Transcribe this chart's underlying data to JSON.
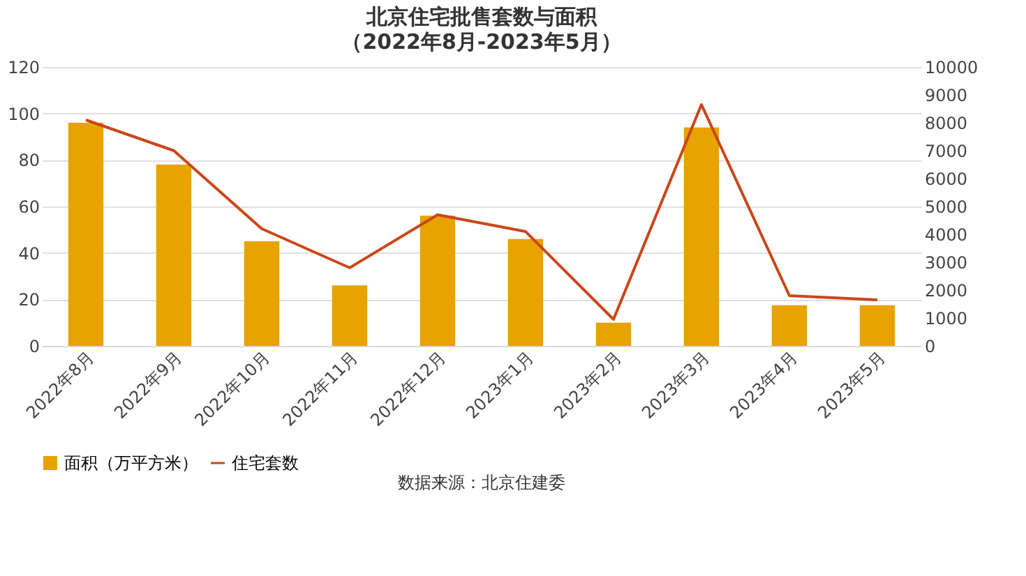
{
  "chart_data": {
    "type": "bar",
    "title": "北京住宅批售套数与面积",
    "subtitle": "（2022年8月-2023年5月）",
    "categories": [
      "2022年8月",
      "2022年9月",
      "2022年10月",
      "2022年11月",
      "2022年12月",
      "2023年1月",
      "2023年2月",
      "2023年3月",
      "2023年4月",
      "2023年5月"
    ],
    "series": [
      {
        "name": "面积（万平方米）",
        "color": "#e8a202",
        "values": [
          96,
          78,
          45,
          26,
          56,
          46,
          10,
          94,
          17.5,
          17.5
        ]
      },
      {
        "name": "住宅套数",
        "type": "line",
        "axis": "y2",
        "color": "#c9471a",
        "values": [
          8100,
          7000,
          4200,
          2800,
          4700,
          4100,
          950,
          8650,
          1800,
          1650
        ]
      }
    ],
    "ylim": [
      0,
      120
    ],
    "yticks": [
      0,
      20,
      40,
      60,
      80,
      100,
      120
    ],
    "y2lim": [
      0,
      10000
    ],
    "y2ticks": [
      0,
      1000,
      2000,
      3000,
      4000,
      5000,
      6000,
      7000,
      8000,
      9000,
      10000
    ],
    "grid": "y",
    "legend": "bottom",
    "marker": "none",
    "line_style": "solid",
    "annotations": [
      "数据来源：北京住建委"
    ]
  }
}
